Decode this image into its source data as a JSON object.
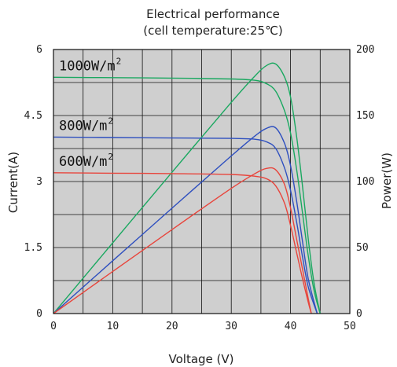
{
  "chart_data": {
    "type": "line",
    "title": "Electrical performance",
    "subtitle": "(cell temperature:25℃)",
    "xlabel": "Voltage (V)",
    "ylabel": "Current(A)",
    "y2label": "Power(W)",
    "xlim": [
      0,
      50
    ],
    "ylim": [
      0,
      6
    ],
    "y2lim": [
      0,
      200
    ],
    "x_ticks": [
      "0",
      "10",
      "20",
      "30",
      "40",
      "50"
    ],
    "y_ticks": [
      "0",
      "1.5",
      "3",
      "4.5",
      "6"
    ],
    "y2_ticks": [
      "0",
      "50",
      "100",
      "150",
      "200"
    ],
    "grid": true,
    "background": "#cfcfcf",
    "series": [
      {
        "name": "1000W/m2",
        "label_text": "1000W/m",
        "label_sup": "2",
        "color": "#1aa860",
        "iv": [
          [
            0,
            5.37
          ],
          [
            10,
            5.36
          ],
          [
            20,
            5.35
          ],
          [
            30,
            5.33
          ],
          [
            34,
            5.3
          ],
          [
            36,
            5.22
          ],
          [
            37.5,
            5.05
          ],
          [
            39,
            4.6
          ],
          [
            40,
            4.1
          ],
          [
            41,
            3.3
          ],
          [
            42,
            2.3
          ],
          [
            43,
            1.3
          ],
          [
            44,
            0.5
          ],
          [
            45,
            0
          ]
        ],
        "pv": [
          [
            0,
            0
          ],
          [
            10,
            53.6
          ],
          [
            20,
            107
          ],
          [
            30,
            160
          ],
          [
            34,
            180
          ],
          [
            36,
            188
          ],
          [
            37.5,
            189
          ],
          [
            39,
            179
          ],
          [
            40,
            164
          ],
          [
            41,
            135
          ],
          [
            42,
            97
          ],
          [
            43,
            56
          ],
          [
            44,
            22
          ],
          [
            45,
            0
          ]
        ]
      },
      {
        "name": "800W/m2",
        "label_text": "800W/m",
        "label_sup": "2",
        "color": "#2e4fbf",
        "iv": [
          [
            0,
            4.01
          ],
          [
            10,
            4.0
          ],
          [
            20,
            3.99
          ],
          [
            30,
            3.98
          ],
          [
            34,
            3.96
          ],
          [
            36,
            3.9
          ],
          [
            37.5,
            3.75
          ],
          [
            39,
            3.3
          ],
          [
            40,
            2.8
          ],
          [
            41,
            2.1
          ],
          [
            42,
            1.3
          ],
          [
            43,
            0.6
          ],
          [
            44.5,
            0
          ]
        ],
        "pv": [
          [
            0,
            0
          ],
          [
            10,
            40
          ],
          [
            20,
            79.8
          ],
          [
            30,
            119.4
          ],
          [
            34,
            134.6
          ],
          [
            36,
            140.4
          ],
          [
            37.5,
            140.6
          ],
          [
            39,
            128.7
          ],
          [
            40,
            112
          ],
          [
            41,
            86
          ],
          [
            42,
            55
          ],
          [
            43,
            26
          ],
          [
            44.5,
            0
          ]
        ]
      },
      {
        "name": "600W/m2",
        "label_text": "600W/m",
        "label_sup": "2",
        "color": "#e8453c",
        "iv": [
          [
            0,
            3.2
          ],
          [
            10,
            3.19
          ],
          [
            20,
            3.18
          ],
          [
            30,
            3.16
          ],
          [
            34,
            3.12
          ],
          [
            36,
            3.06
          ],
          [
            37.5,
            2.9
          ],
          [
            39,
            2.5
          ],
          [
            40,
            2.0
          ],
          [
            41,
            1.4
          ],
          [
            42,
            0.8
          ],
          [
            43,
            0.25
          ],
          [
            43.5,
            0
          ]
        ],
        "pv": [
          [
            0,
            0
          ],
          [
            10,
            31.9
          ],
          [
            20,
            63.6
          ],
          [
            30,
            94.8
          ],
          [
            34,
            106
          ],
          [
            36,
            110
          ],
          [
            37.5,
            108.8
          ],
          [
            39,
            97.5
          ],
          [
            40,
            80
          ],
          [
            41,
            57
          ],
          [
            42,
            34
          ],
          [
            43,
            11
          ],
          [
            43.5,
            0
          ]
        ]
      }
    ]
  }
}
